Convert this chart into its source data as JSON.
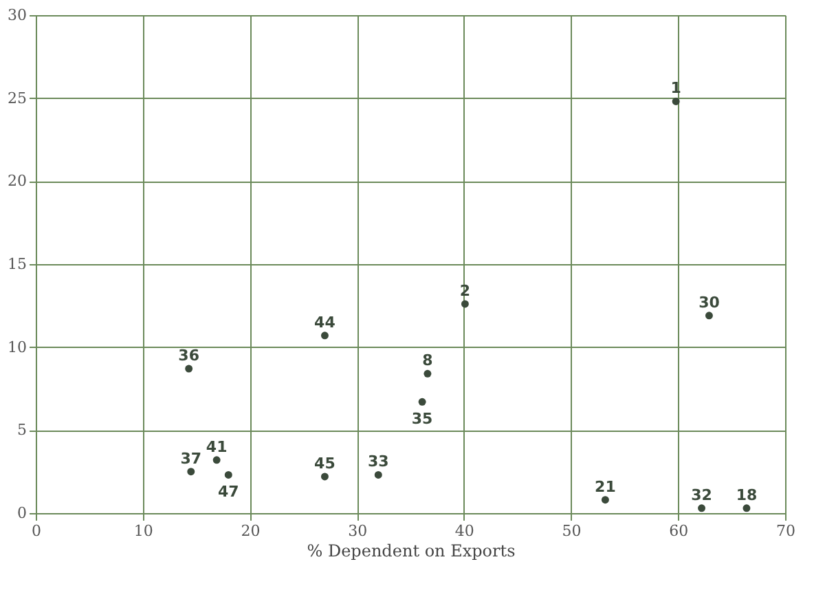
{
  "chart_data": {
    "type": "scatter",
    "xlabel": "% Dependent on Exports",
    "xlim": [
      0,
      70
    ],
    "ylim": [
      0,
      30
    ],
    "xticks": [
      0,
      10,
      20,
      30,
      40,
      50,
      60,
      70
    ],
    "yticks": [
      0,
      5,
      10,
      15,
      20,
      25,
      30
    ],
    "grid": true,
    "marker": "circle",
    "series": [
      {
        "color": "#3b4a3b",
        "x": [
          59.8,
          40.1,
          62.9,
          27.0,
          14.3,
          36.6,
          36.1,
          16.9,
          14.5,
          18.0,
          27.0,
          32.0,
          53.2,
          62.2,
          66.4
        ],
        "values": [
          24.8,
          12.6,
          11.9,
          10.7,
          8.7,
          8.4,
          6.7,
          3.2,
          2.5,
          2.3,
          2.2,
          2.3,
          0.8,
          0.3,
          0.3
        ]
      }
    ],
    "annotations": [
      {
        "text": "1",
        "x": 59.8,
        "y": 24.8
      },
      {
        "text": "2",
        "x": 40.1,
        "y": 12.6
      },
      {
        "text": "30",
        "x": 62.9,
        "y": 11.9
      },
      {
        "text": "44",
        "x": 27.0,
        "y": 10.7
      },
      {
        "text": "36",
        "x": 14.3,
        "y": 8.7
      },
      {
        "text": "8",
        "x": 36.6,
        "y": 8.4
      },
      {
        "text": "35",
        "x": 36.1,
        "y": 6.7
      },
      {
        "text": "41",
        "x": 16.9,
        "y": 3.2
      },
      {
        "text": "37",
        "x": 14.5,
        "y": 2.5
      },
      {
        "text": "47",
        "x": 18.0,
        "y": 2.3
      },
      {
        "text": "45",
        "x": 27.0,
        "y": 2.2
      },
      {
        "text": "33",
        "x": 32.0,
        "y": 2.3
      },
      {
        "text": "21",
        "x": 53.2,
        "y": 0.8
      },
      {
        "text": "32",
        "x": 62.2,
        "y": 0.3
      },
      {
        "text": "18",
        "x": 66.4,
        "y": 0.3
      }
    ]
  }
}
